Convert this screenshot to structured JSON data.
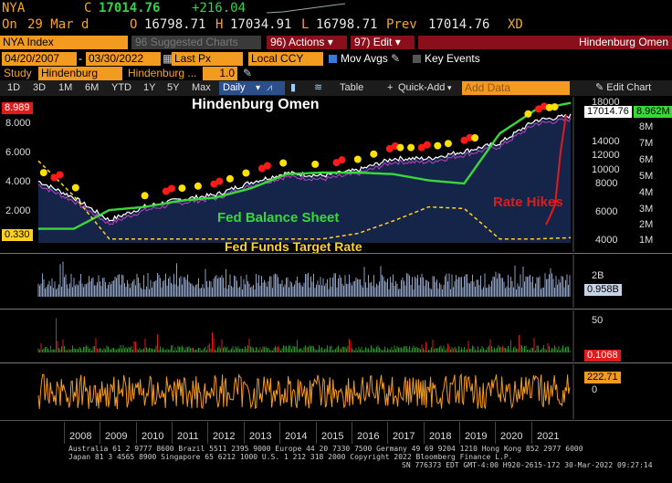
{
  "quote": {
    "ticker": "NYA",
    "c_label": "C",
    "last": "17014.76",
    "change": "+216.04",
    "on_label": "On",
    "date": "29 Mar d",
    "o_label": "O",
    "open": "16798.71",
    "h_label": "H",
    "high": "17034.91",
    "l_label": "L",
    "low": "16798.71",
    "prev_label": "Prev",
    "prev": "17014.76",
    "xd": "XD"
  },
  "toolbar1": {
    "security": "NYA Index",
    "suggested": "Suggested Charts",
    "suggested_num": "96",
    "actions_num": "96)",
    "actions": "Actions",
    "edit_num": "97)",
    "edit": "Edit",
    "chart_title": "Hindenburg Omen"
  },
  "toolbar2": {
    "start_date": "04/20/2007",
    "end_date": "03/30/2022",
    "field": "Last Px",
    "currency": "Local CCY",
    "mov_avgs": "Mov Avgs",
    "key_events": "Key Events"
  },
  "toolbar3": {
    "study_label": "Study",
    "study": "Hindenburg",
    "study2": "Hindenburg ...",
    "study_value": "1.0"
  },
  "toolbar4": {
    "periods": [
      "1D",
      "3D",
      "1M",
      "6M",
      "YTD",
      "1Y",
      "5Y",
      "Max"
    ],
    "frequency": "Daily",
    "table": "Table",
    "quick_add": "Quick-Add",
    "add_data_placeholder": "Add Data",
    "edit_chart": "Edit Chart"
  },
  "annotations": {
    "title": "Hindenburg Omen",
    "balance_sheet": "Fed Balance Sheet",
    "funds_rate": "Fed  Funds Target Rate",
    "rate_hikes": "Rate Hikes"
  },
  "main_panel": {
    "left_axis": [
      "8.000",
      "6.000",
      "4.000",
      "2.000"
    ],
    "left_top_tag": "8.989",
    "left_bottom_tag": "0.330",
    "right_axis_price": [
      "18000",
      "16000",
      "14000",
      "12000",
      "10000",
      "8000",
      "6000",
      "4000"
    ],
    "right_axis_sheet": [
      "8M",
      "7M",
      "6M",
      "5M",
      "4M",
      "3M",
      "2M",
      "1M"
    ],
    "price_tag": "17014.76",
    "sheet_tag": "8.962M"
  },
  "volume_panel": {
    "axis": [
      "2B",
      "0"
    ],
    "tag": "0.958B"
  },
  "omen_panel": {
    "axis": [
      "50",
      "0"
    ],
    "tag": "0.1068"
  },
  "osc_panel": {
    "axis": [
      "0"
    ],
    "tag": "222.71"
  },
  "x_axis": [
    "2008",
    "2009",
    "2010",
    "2011",
    "2012",
    "2013",
    "2014",
    "2015",
    "2016",
    "2017",
    "2018",
    "2019",
    "2020",
    "2021"
  ],
  "footer": {
    "line1": "Australia 61 2 9777 8600 Brazil 5511 2395 9000 Europe 44 20 7330 7500 Germany 49 69 9204 1210 Hong Kong 852 2977 6000",
    "line2": "Japan 81 3 4565 8900      Singapore 65 6212 1000       U.S. 1 212 318 2000          Copyright 2022 Bloomberg Finance L.P.",
    "line3": "SN 776373 EDT  GMT-4:00 H920-2615-172 30-Mar-2022 09:27:14"
  },
  "colors": {
    "amber": "#f39b21",
    "price_line": "#ffffff",
    "balance_sheet": "#39d73a",
    "funds_rate": "#ffd21f",
    "omen_marker_yellow": "#ffe100",
    "omen_marker_red": "#ff1a1a",
    "area_fill": "#15254a"
  },
  "chart_data": {
    "type": "line",
    "x": [
      "2007-04",
      "2008",
      "2009",
      "2010",
      "2011",
      "2012",
      "2013",
      "2014",
      "2015",
      "2016",
      "2017",
      "2018",
      "2019",
      "2020",
      "2021",
      "2022-03"
    ],
    "series": [
      {
        "name": "NYA Index",
        "values": [
          9800,
          8000,
          5500,
          7000,
          7800,
          8300,
          9700,
          10700,
          10400,
          11000,
          12300,
          12300,
          13100,
          14000,
          16500,
          17014.76
        ]
      },
      {
        "name": "Fed Balance Sheet",
        "values": [
          0.9,
          0.9,
          2.1,
          2.3,
          2.7,
          2.9,
          3.5,
          4.4,
          4.5,
          4.5,
          4.4,
          4.0,
          3.8,
          7.0,
          8.5,
          8.962
        ]
      },
      {
        "name": "Fed Funds Target Rate",
        "values": [
          5.25,
          3.0,
          0.25,
          0.25,
          0.25,
          0.25,
          0.25,
          0.25,
          0.25,
          0.6,
          1.4,
          2.3,
          2.2,
          0.25,
          0.25,
          0.33
        ]
      }
    ],
    "ylim_left": [
      0,
      9
    ],
    "ylim_right_price": [
      3000,
      18500
    ],
    "ylim_right_sheet": [
      0,
      9
    ]
  }
}
